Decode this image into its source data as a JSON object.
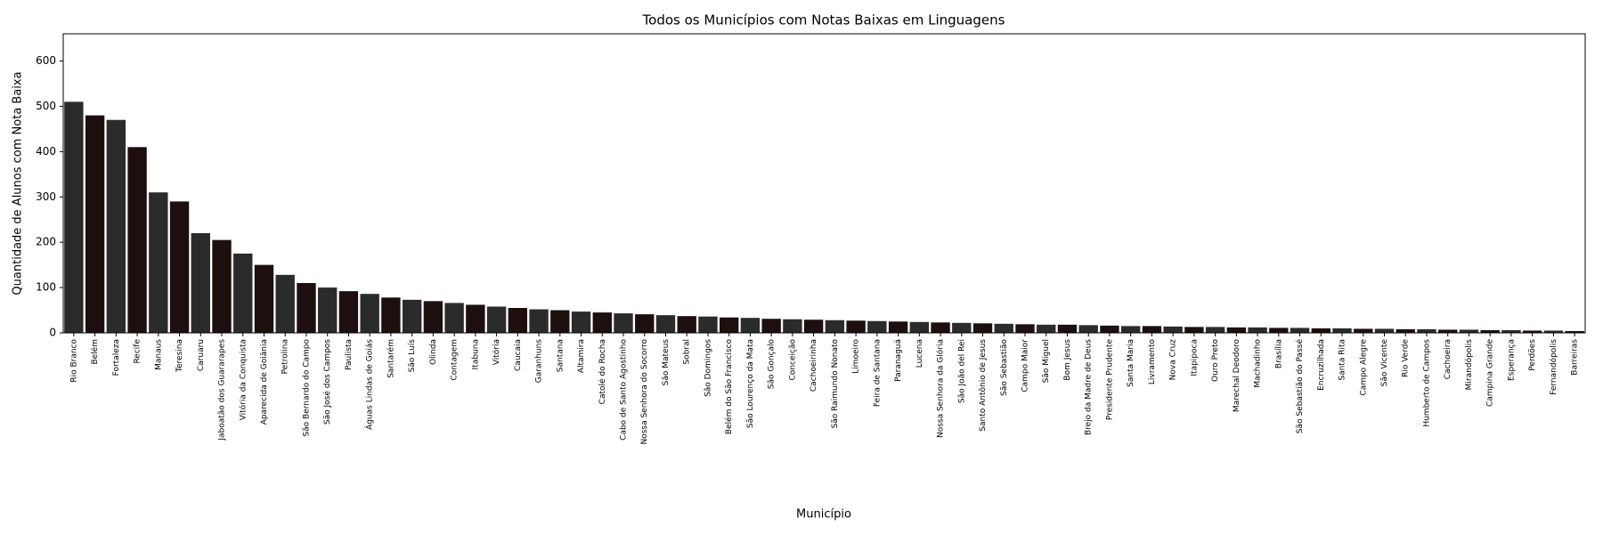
{
  "chart_data": {
    "type": "bar",
    "title": "Todos os Municípios com Notas Baixas em Linguagens",
    "xlabel": "Município",
    "ylabel": "Quantidade de Alunos com Nota Baixa",
    "categories": [
      "Rio Branco",
      "Belém",
      "Fortaleza",
      "Recife",
      "Manaus",
      "Teresina",
      "Caruaru",
      "Jaboatão dos Guararapes",
      "Vitória da Conquista",
      "Aparecida de Goiânia",
      "Petrolina",
      "São Bernardo do Campo",
      "São José dos Campos",
      "Paulista",
      "Águas Lindas de Goiás",
      "Santarém",
      "São Luís",
      "Olinda",
      "Contagem",
      "Itabuna",
      "Vitória",
      "Caucaia",
      "Garanhuns",
      "Santana",
      "Altamira",
      "Catolé do Rocha",
      "Cabo de Santo Agostinho",
      "Nossa Senhora do Socorro",
      "São Mateus",
      "Sobral",
      "São Domingos",
      "Belém do São Francisco",
      "São Lourenço da Mata",
      "São Gonçalo",
      "Conceição",
      "Cachoeirinha",
      "São Raimundo Nonato",
      "Limoeiro",
      "Feira de Santana",
      "Paranaguá",
      "Lucena",
      "Nossa Senhora da Glória",
      "São João del Rei",
      "Santo Antônio de Jesus",
      "São Sebastião",
      "Campo Maior",
      "São Miguel",
      "Bom Jesus",
      "Brejo da Madre de Deus",
      "Presidente Prudente",
      "Santa Maria",
      "Livramento",
      "Nova Cruz",
      "Itapipoca",
      "Ouro Preto",
      "Marechal Deodoro",
      "Machadinho",
      "Brasília",
      "São Sebastião do Passé",
      "Encruzilhada",
      "Santa Rita",
      "Campo Alegre",
      "São Vicente",
      "Rio Verde",
      "Humberto de Campos",
      "Cachoeira",
      "Mirandópolis",
      "Campina Grande",
      "Esperança",
      "Perdões",
      "Fernandópolis",
      "Barreiras"
    ],
    "values": [
      510,
      480,
      470,
      410,
      310,
      290,
      220,
      205,
      175,
      150,
      128,
      110,
      100,
      92,
      86,
      78,
      73,
      70,
      66,
      62,
      58,
      55,
      52,
      50,
      47,
      45,
      43,
      41,
      39,
      37,
      36,
      34,
      33,
      31,
      30,
      29,
      28,
      27,
      26,
      25,
      24,
      23,
      22,
      21,
      20,
      19,
      18,
      18,
      17,
      16,
      15,
      15,
      14,
      13,
      13,
      12,
      12,
      11,
      11,
      10,
      10,
      9,
      9,
      8,
      8,
      7,
      7,
      6,
      6,
      5,
      5,
      4
    ],
    "colors": [
      "#2b2b2b",
      "#1e0f0f"
    ],
    "ylim": [
      0,
      660
    ],
    "yticks": [
      0,
      100,
      200,
      300,
      400,
      500,
      600
    ]
  }
}
